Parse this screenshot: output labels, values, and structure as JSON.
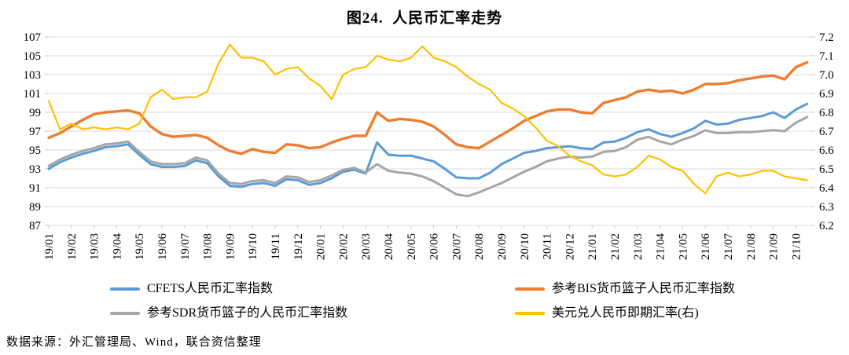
{
  "title": "图24.  人民币汇率走势",
  "source_note": "数据来源：外汇管理局、Wind，联合资信整理",
  "colors": {
    "cfets": "#5B9BD5",
    "bis": "#ED7D31",
    "sdr": "#A5A5A5",
    "usdcny": "#FFC000",
    "gridline": "#D9D9D9",
    "tick": "#C6C6C6",
    "text": "#000000",
    "background": "#FFFFFF"
  },
  "chart_data": {
    "type": "line",
    "title": "图24.  人民币汇率走势",
    "grid": true,
    "legend_position": "bottom",
    "x_tick_labels": [
      "19/01",
      "19/02",
      "19/03",
      "19/04",
      "19/05",
      "19/06",
      "19/07",
      "19/08",
      "19/09",
      "19/10",
      "19/11",
      "19/12",
      "20/01",
      "20/02",
      "20/03",
      "20/04",
      "20/05",
      "20/06",
      "20/07",
      "20/08",
      "20/09",
      "20/10",
      "20/11",
      "20/12",
      "21/01",
      "21/02",
      "21/03",
      "21/04",
      "21/05",
      "21/06",
      "21/07",
      "21/08",
      "21/09",
      "21/10"
    ],
    "points_per_month": 2,
    "left_axis": {
      "min": 87,
      "max": 107,
      "step": 2,
      "ticks": [
        "107",
        "105",
        "103",
        "101",
        "99",
        "97",
        "95",
        "93",
        "91",
        "89",
        "87"
      ]
    },
    "right_axis": {
      "min": 6.2,
      "max": 7.2,
      "step": 0.1,
      "ticks": [
        "7.2",
        "7.1",
        "7.0",
        "6.9",
        "6.8",
        "6.7",
        "6.6",
        "6.5",
        "6.4",
        "6.3",
        "6.2"
      ]
    },
    "series": [
      {
        "id": "cfets",
        "name": "CFETS人民币汇率指数",
        "axis": "left",
        "color": "#5B9BD5",
        "width": 3,
        "values": [
          93.0,
          93.7,
          94.2,
          94.6,
          94.9,
          95.3,
          95.4,
          95.6,
          94.5,
          93.5,
          93.2,
          93.2,
          93.3,
          93.9,
          93.6,
          92.2,
          91.2,
          91.1,
          91.4,
          91.5,
          91.2,
          91.9,
          91.8,
          91.3,
          91.5,
          92.0,
          92.7,
          92.9,
          92.5,
          95.8,
          94.5,
          94.4,
          94.4,
          94.1,
          93.8,
          93.0,
          92.1,
          92.0,
          92.0,
          92.6,
          93.5,
          94.1,
          94.7,
          94.9,
          95.2,
          95.3,
          95.4,
          95.2,
          95.1,
          95.8,
          95.9,
          96.3,
          96.9,
          97.2,
          96.7,
          96.4,
          96.8,
          97.3,
          98.1,
          97.7,
          97.8,
          98.2,
          98.4,
          98.6,
          99.0,
          98.4,
          99.3,
          99.9
        ]
      },
      {
        "id": "bis",
        "name": "参考BIS货币篮子人民币汇率指数",
        "axis": "left",
        "color": "#ED7D31",
        "width": 3.4,
        "values": [
          96.3,
          96.8,
          97.5,
          98.2,
          98.8,
          99.0,
          99.1,
          99.2,
          98.9,
          97.5,
          96.7,
          96.4,
          96.5,
          96.6,
          96.3,
          95.5,
          94.9,
          94.6,
          95.1,
          94.8,
          94.7,
          95.6,
          95.5,
          95.2,
          95.3,
          95.8,
          96.2,
          96.5,
          96.5,
          99.0,
          98.1,
          98.3,
          98.2,
          98.0,
          97.5,
          96.6,
          95.6,
          95.3,
          95.2,
          95.9,
          96.6,
          97.3,
          98.1,
          98.6,
          99.1,
          99.3,
          99.3,
          99.0,
          98.9,
          100.0,
          100.3,
          100.6,
          101.2,
          101.4,
          101.2,
          101.3,
          101.0,
          101.4,
          102.0,
          102.0,
          102.1,
          102.4,
          102.6,
          102.8,
          102.9,
          102.5,
          103.8,
          104.3
        ]
      },
      {
        "id": "sdr",
        "name": "参考SDR货币篮子的人民币汇率指数",
        "axis": "left",
        "color": "#A5A5A5",
        "width": 3,
        "values": [
          93.3,
          94.0,
          94.5,
          94.9,
          95.2,
          95.6,
          95.7,
          95.9,
          94.8,
          93.8,
          93.5,
          93.5,
          93.6,
          94.2,
          93.9,
          92.5,
          91.5,
          91.4,
          91.7,
          91.8,
          91.5,
          92.2,
          92.1,
          91.6,
          91.8,
          92.3,
          92.9,
          93.1,
          92.6,
          93.5,
          92.8,
          92.6,
          92.5,
          92.2,
          91.7,
          91.0,
          90.3,
          90.1,
          90.5,
          91.0,
          91.5,
          92.1,
          92.7,
          93.2,
          93.8,
          94.1,
          94.3,
          94.2,
          94.3,
          94.8,
          94.9,
          95.3,
          96.1,
          96.4,
          95.9,
          95.6,
          96.1,
          96.5,
          97.1,
          96.8,
          96.8,
          96.9,
          96.9,
          97.0,
          97.1,
          97.0,
          97.9,
          98.5
        ]
      },
      {
        "id": "usdcny",
        "name": "美元兑人民币即期汇率(右)",
        "axis": "right",
        "color": "#FFC000",
        "width": 2.2,
        "values": [
          6.86,
          6.71,
          6.74,
          6.71,
          6.72,
          6.71,
          6.72,
          6.71,
          6.74,
          6.88,
          6.92,
          6.87,
          6.88,
          6.88,
          6.91,
          7.06,
          7.16,
          7.09,
          7.09,
          7.07,
          7.0,
          7.03,
          7.04,
          6.98,
          6.94,
          6.87,
          7.0,
          7.03,
          7.04,
          7.1,
          7.08,
          7.07,
          7.09,
          7.15,
          7.09,
          7.07,
          7.04,
          6.99,
          6.95,
          6.92,
          6.85,
          6.82,
          6.78,
          6.72,
          6.65,
          6.62,
          6.57,
          6.54,
          6.52,
          6.47,
          6.46,
          6.47,
          6.51,
          6.57,
          6.55,
          6.51,
          6.49,
          6.42,
          6.37,
          6.46,
          6.48,
          6.46,
          6.47,
          6.49,
          6.49,
          6.46,
          6.45,
          6.44
        ]
      }
    ]
  }
}
